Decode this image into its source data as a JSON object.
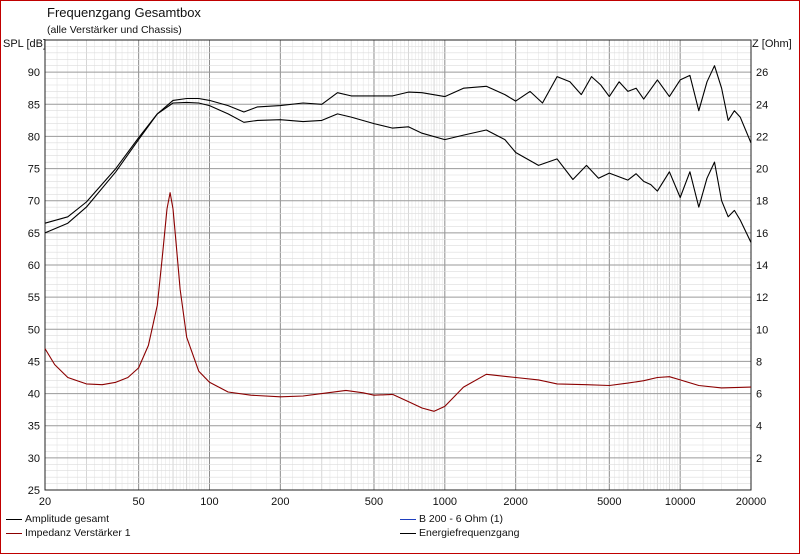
{
  "chart_data": {
    "type": "line",
    "title": "Frequenzgang Gesamtbox",
    "subtitle": "(alle Verstärker und Chassis)",
    "ylabel_left": "SPL [dB]",
    "ylabel_right": "Z [Ohm]",
    "x_scale": "log",
    "xlim": [
      20,
      20000
    ],
    "ylim_left": [
      25,
      95
    ],
    "ylim_right": [
      0,
      28
    ],
    "x_ticks": [
      "20",
      "50",
      "100",
      "200",
      "500",
      "1000",
      "2000",
      "5000",
      "10000",
      "20000"
    ],
    "y_ticks_left": [
      "25",
      "30",
      "35",
      "40",
      "45",
      "50",
      "55",
      "60",
      "65",
      "70",
      "75",
      "80",
      "85",
      "90"
    ],
    "y_ticks_right": [
      "2",
      "4",
      "6",
      "8",
      "10",
      "12",
      "14",
      "16",
      "18",
      "20",
      "22",
      "24",
      "26"
    ],
    "grid": true,
    "series": [
      {
        "name": "Amplitude gesamt",
        "color": "#000000",
        "x": [
          20,
          25,
          30,
          40,
          50,
          60,
          70,
          80,
          90,
          100,
          120,
          140,
          160,
          200,
          250,
          300,
          350,
          400,
          500,
          600,
          700,
          800,
          1000,
          1200,
          1500,
          1800,
          2000,
          2500,
          3000,
          3500,
          4000,
          4500,
          5000,
          6000,
          6500,
          7000,
          7500,
          8000,
          9000,
          10000,
          11000,
          12000,
          13000,
          14000,
          15000,
          16000,
          17000,
          18000,
          20000
        ],
        "y": [
          65,
          66.5,
          69,
          74.5,
          79.5,
          83.5,
          85.2,
          85.3,
          85.2,
          84.8,
          83.5,
          82.2,
          82.5,
          82.6,
          82.3,
          82.5,
          83.5,
          83,
          82,
          81.3,
          81.5,
          80.5,
          79.5,
          80.2,
          81,
          79.5,
          77.5,
          75.5,
          76.5,
          73.3,
          75.5,
          73.5,
          74.3,
          73.2,
          74.2,
          73,
          72.5,
          71.5,
          74.5,
          70.5,
          74.5,
          69,
          73.5,
          76,
          70,
          67.5,
          68.5,
          67,
          63.5
        ]
      },
      {
        "name": "Energiefrequenzgang",
        "color": "#000000",
        "x": [
          20,
          25,
          30,
          40,
          50,
          60,
          70,
          80,
          90,
          100,
          120,
          140,
          160,
          200,
          250,
          300,
          350,
          400,
          500,
          600,
          700,
          800,
          1000,
          1200,
          1500,
          1800,
          2000,
          2300,
          2600,
          3000,
          3400,
          3800,
          4200,
          4600,
          5000,
          5500,
          6000,
          6500,
          7000,
          8000,
          9000,
          10000,
          11000,
          12000,
          13000,
          14000,
          15000,
          16000,
          17000,
          18000,
          20000
        ],
        "y": [
          66.5,
          67.5,
          69.8,
          75,
          79.8,
          83.5,
          85.6,
          85.9,
          85.9,
          85.6,
          84.8,
          83.8,
          84.6,
          84.8,
          85.2,
          85,
          86.8,
          86.3,
          86.3,
          86.3,
          86.9,
          86.8,
          86.2,
          87.5,
          87.8,
          86.5,
          85.5,
          87,
          85.2,
          89.3,
          88.5,
          86.5,
          89.3,
          88,
          86.2,
          88.5,
          87,
          87.5,
          85.8,
          88.8,
          86.2,
          88.8,
          89.5,
          84,
          88.5,
          91,
          87.5,
          82.5,
          84,
          83,
          79
        ]
      },
      {
        "name": "Impedanz Verstärker 1",
        "color": "#8b0000",
        "x": [
          20,
          22,
          25,
          30,
          35,
          40,
          45,
          50,
          55,
          60,
          63,
          66,
          68,
          70,
          72,
          75,
          80,
          90,
          100,
          120,
          150,
          200,
          250,
          300,
          380,
          450,
          500,
          600,
          700,
          800,
          900,
          1000,
          1200,
          1500,
          2000,
          2500,
          3000,
          4000,
          5000,
          6000,
          7000,
          8000,
          9000,
          10000,
          12000,
          15000,
          20000
        ],
        "y": [
          8.8,
          7.8,
          7,
          6.6,
          6.55,
          6.7,
          7,
          7.6,
          9,
          11.5,
          14.5,
          17.5,
          18.5,
          17.5,
          15.5,
          12.5,
          9.5,
          7.4,
          6.7,
          6.1,
          5.9,
          5.8,
          5.85,
          6,
          6.2,
          6.05,
          5.9,
          5.95,
          5.5,
          5.1,
          4.9,
          5.2,
          6.4,
          7.2,
          7,
          6.85,
          6.6,
          6.55,
          6.5,
          6.65,
          6.8,
          7,
          7.05,
          6.85,
          6.5,
          6.35,
          6.4
        ]
      }
    ],
    "legend": [
      {
        "label": "Amplitude gesamt",
        "color": "#000000"
      },
      {
        "label": "Impedanz Verstärker 1",
        "color": "#8b0000"
      },
      {
        "label": "B 200 - 6 Ohm (1)",
        "color": "#1f3fbf"
      },
      {
        "label": "Energiefrequenzgang",
        "color": "#000000"
      }
    ]
  }
}
